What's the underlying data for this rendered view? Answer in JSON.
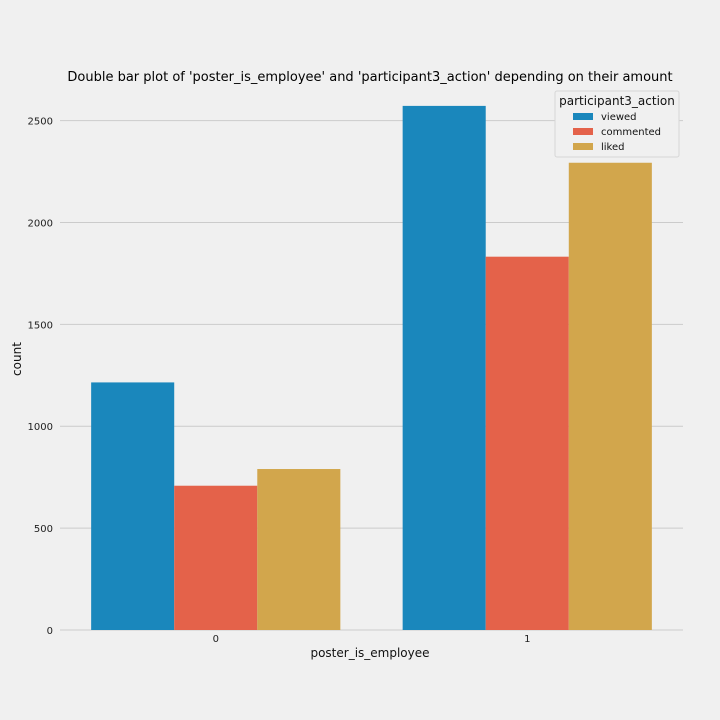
{
  "chart_data": {
    "type": "bar",
    "title": "Double bar plot of 'poster_is_employee' and 'participant3_action' depending on their amount",
    "xlabel": "poster_is_employee",
    "ylabel": "count",
    "categories": [
      "0",
      "1"
    ],
    "series": [
      {
        "name": "viewed",
        "color": "#1a87bc",
        "values": [
          1215,
          2572
        ]
      },
      {
        "name": "commented",
        "color": "#e4624a",
        "values": [
          708,
          1832
        ]
      },
      {
        "name": "liked",
        "color": "#d2a64c",
        "values": [
          790,
          2293
        ]
      }
    ],
    "yticks": [
      0,
      500,
      1000,
      1500,
      2000,
      2500
    ],
    "ylim": [
      0,
      2650
    ],
    "grid": true,
    "legend": {
      "title": "participant3_action",
      "placement": "top-right"
    }
  }
}
